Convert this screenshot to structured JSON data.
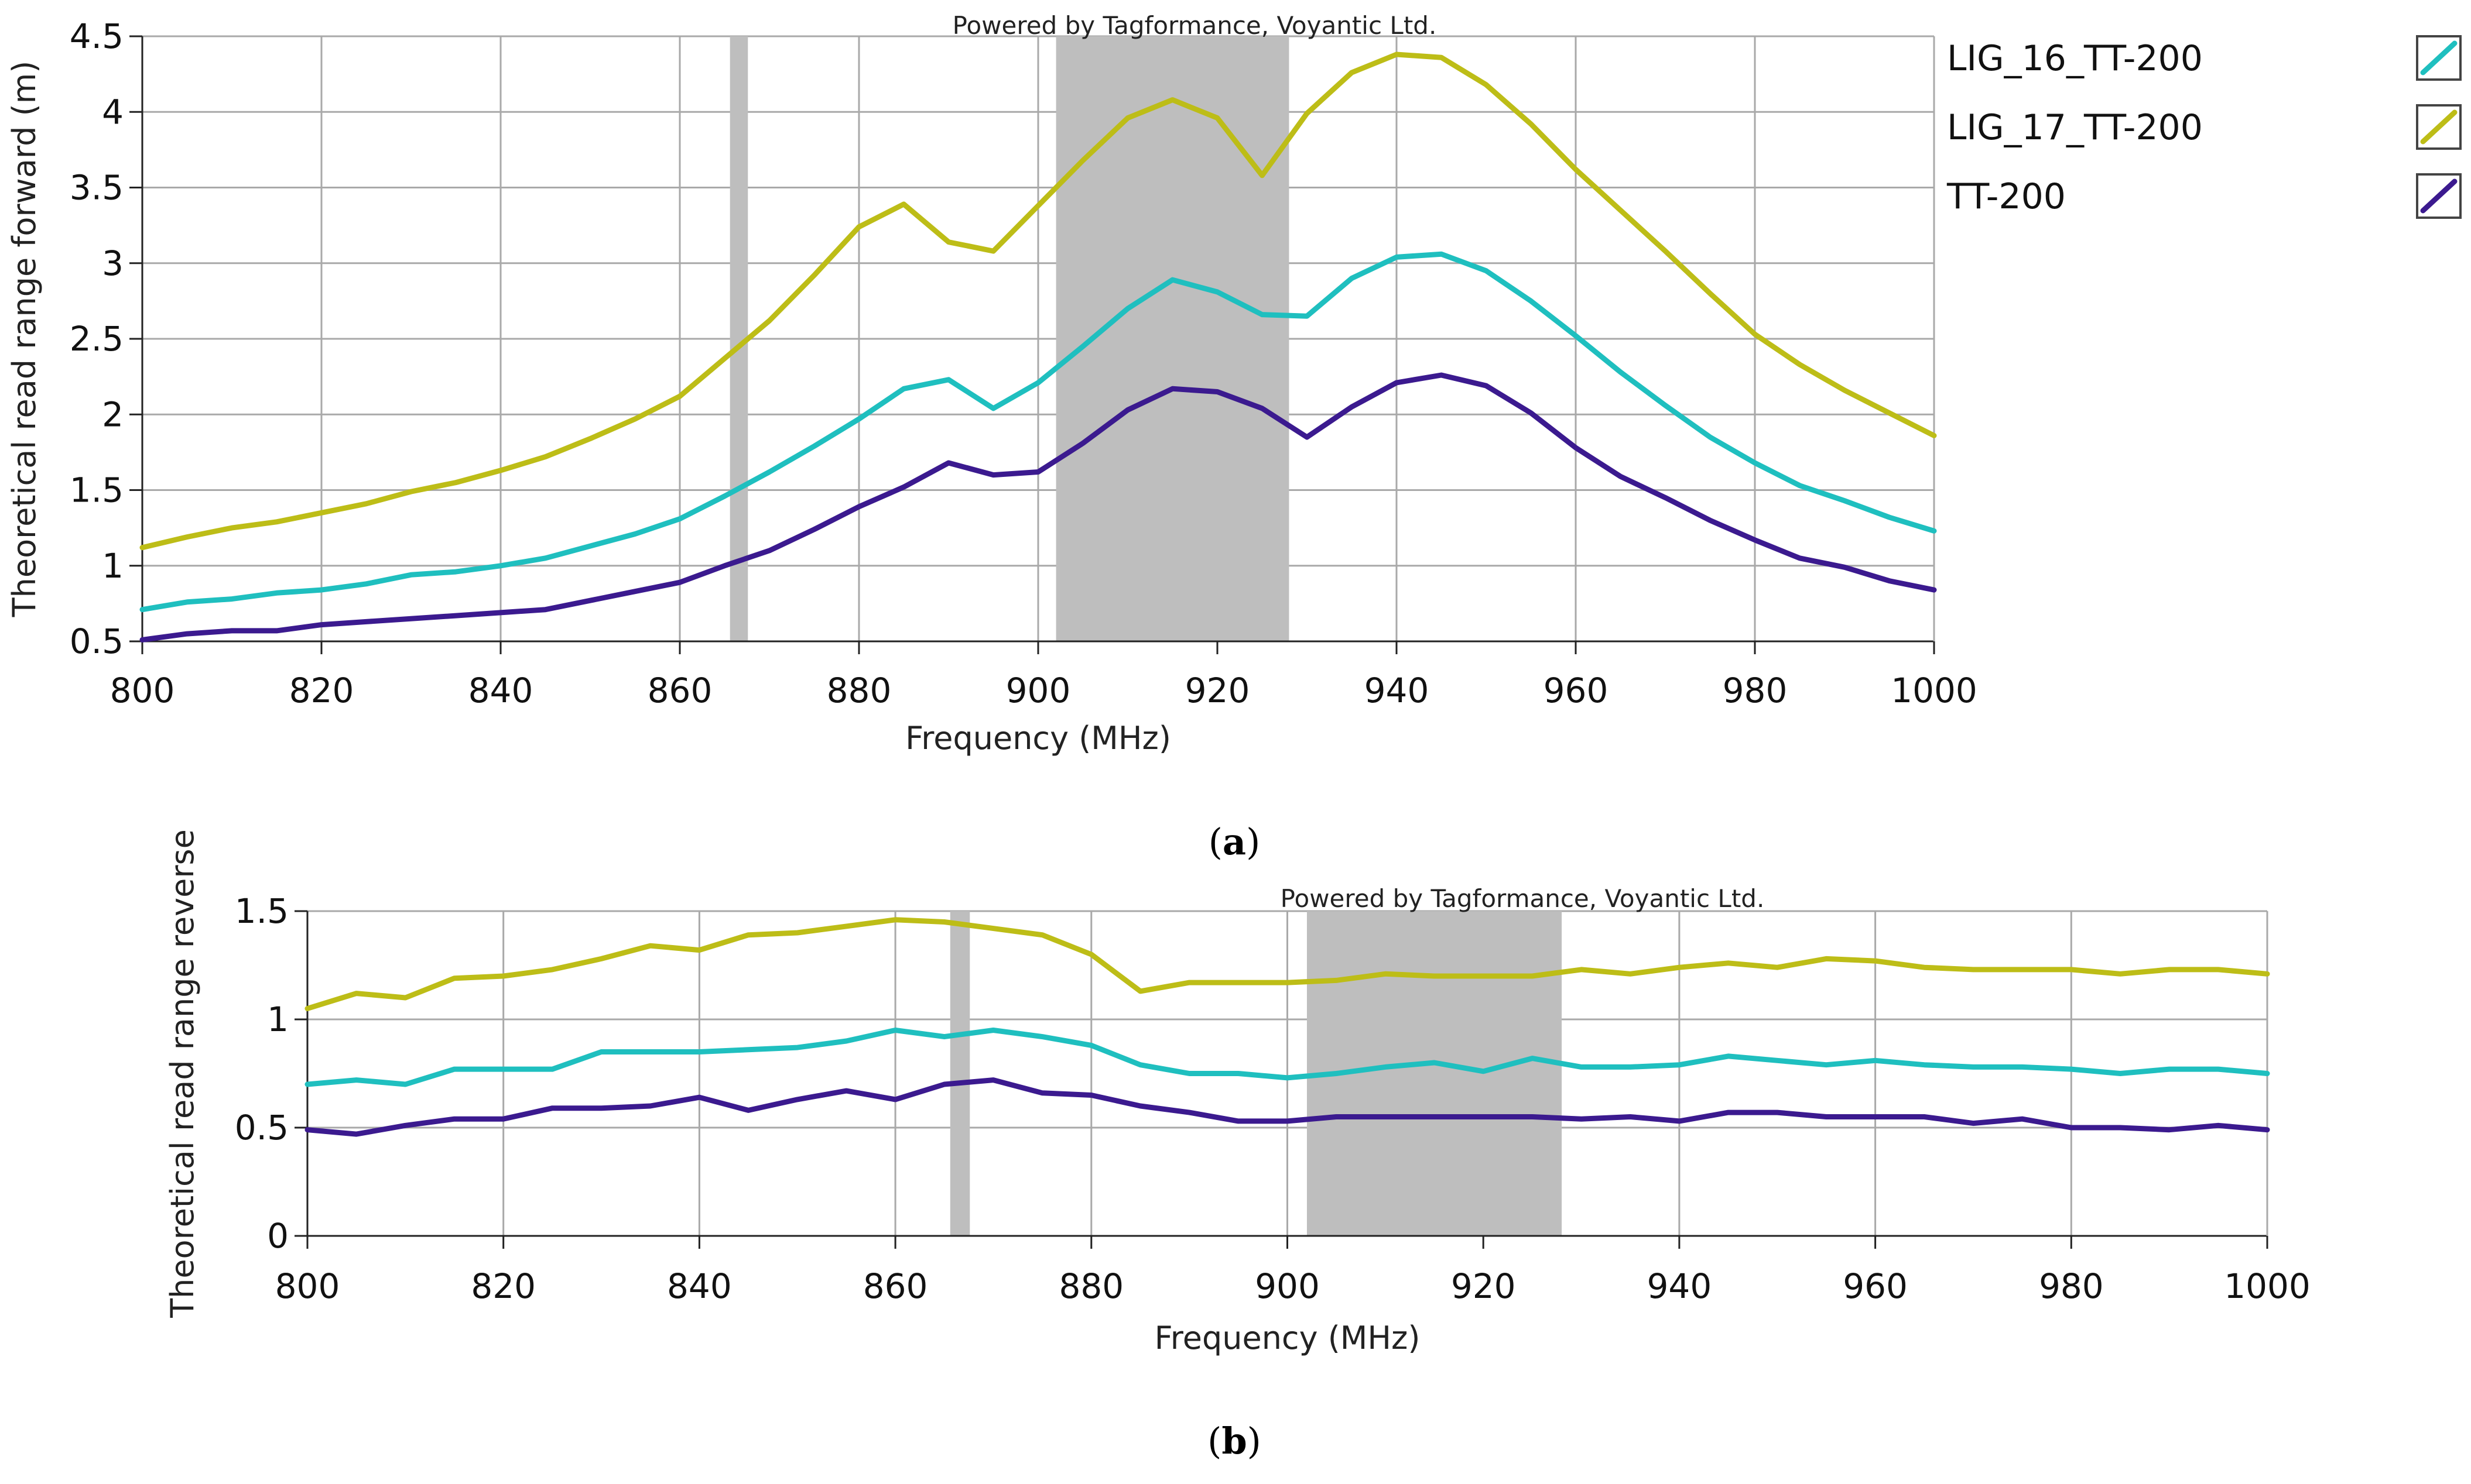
{
  "chart_data": [
    {
      "id": "a",
      "type": "line",
      "title": "",
      "watermark": "Powered by Tagformance, Voyantic Ltd.",
      "xlabel": "Frequency (MHz)",
      "ylabel": "Theoretical read range forward (m)",
      "xlim": [
        800,
        1000
      ],
      "ylim": [
        0.5,
        4.5
      ],
      "xticks": [
        800,
        820,
        840,
        860,
        880,
        900,
        920,
        940,
        960,
        980,
        1000
      ],
      "xtick_labels": [
        "800",
        "820",
        "840",
        "860",
        "880",
        "900",
        "920",
        "940",
        "960",
        "980",
        "1000"
      ],
      "yticks": [
        0.5,
        1,
        1.5,
        2,
        2.5,
        3,
        3.5,
        4,
        4.5
      ],
      "ytick_labels": [
        "0.5",
        "1",
        "1.5",
        "2",
        "2.5",
        "3",
        "3.5",
        "4",
        "4.5"
      ],
      "grid": true,
      "legend_position": "right",
      "caption_prefix": "(",
      "caption_label": "a",
      "caption_suffix": ")",
      "shaded_bands": [
        {
          "from": 865.6,
          "to": 867.6,
          "color": "#bebebe"
        },
        {
          "from": 902,
          "to": 928,
          "color": "#bebebe"
        }
      ],
      "x": [
        800,
        805,
        810,
        815,
        820,
        825,
        830,
        835,
        840,
        845,
        850,
        855,
        860,
        865,
        870,
        875,
        880,
        885,
        890,
        895,
        900,
        905,
        910,
        915,
        920,
        925,
        930,
        935,
        940,
        945,
        950,
        955,
        960,
        965,
        970,
        975,
        980,
        985,
        990,
        995,
        1000
      ],
      "series": [
        {
          "name": "LIG_16_TT-200",
          "color": "#1fbfbf",
          "values": [
            0.71,
            0.76,
            0.78,
            0.82,
            0.84,
            0.88,
            0.94,
            0.96,
            1.0,
            1.05,
            1.13,
            1.21,
            1.31,
            1.46,
            1.62,
            1.79,
            1.97,
            2.17,
            2.23,
            2.04,
            2.21,
            2.45,
            2.7,
            2.89,
            2.81,
            2.66,
            2.65,
            2.9,
            3.04,
            3.06,
            2.95,
            2.75,
            2.52,
            2.28,
            2.06,
            1.85,
            1.68,
            1.53,
            1.43,
            1.32,
            1.23
          ]
        },
        {
          "name": "LIG_17_TT-200",
          "color": "#bdbd17",
          "values": [
            1.12,
            1.19,
            1.25,
            1.29,
            1.35,
            1.41,
            1.49,
            1.55,
            1.63,
            1.72,
            1.84,
            1.97,
            2.12,
            2.37,
            2.62,
            2.92,
            3.24,
            3.39,
            3.14,
            3.08,
            3.38,
            3.68,
            3.96,
            4.08,
            3.96,
            3.58,
            3.99,
            4.26,
            4.38,
            4.36,
            4.18,
            3.92,
            3.62,
            3.35,
            3.08,
            2.8,
            2.53,
            2.33,
            2.16,
            2.01,
            1.86
          ]
        },
        {
          "name": "TT-200",
          "color": "#3b1a8f",
          "values": [
            0.51,
            0.55,
            0.57,
            0.57,
            0.61,
            0.63,
            0.65,
            0.67,
            0.69,
            0.71,
            0.77,
            0.83,
            0.89,
            1.0,
            1.1,
            1.24,
            1.39,
            1.52,
            1.68,
            1.6,
            1.62,
            1.81,
            2.03,
            2.17,
            2.15,
            2.04,
            1.85,
            2.05,
            2.21,
            2.26,
            2.19,
            2.01,
            1.78,
            1.59,
            1.45,
            1.3,
            1.17,
            1.05,
            0.99,
            0.9,
            0.84
          ]
        }
      ]
    },
    {
      "id": "b",
      "type": "line",
      "title": "",
      "watermark": "Powered by Tagformance, Voyantic Ltd.",
      "xlabel": "Frequency (MHz)",
      "ylabel": "Theoretical read range reverse",
      "xlim": [
        800,
        1000
      ],
      "ylim": [
        0,
        1.5
      ],
      "xticks": [
        800,
        820,
        840,
        860,
        880,
        900,
        920,
        940,
        960,
        980,
        1000
      ],
      "xtick_labels": [
        "800",
        "820",
        "840",
        "860",
        "880",
        "900",
        "920",
        "940",
        "960",
        "980",
        "1000"
      ],
      "yticks": [
        0,
        0.5,
        1,
        1.5
      ],
      "ytick_labels": [
        "0",
        "0.5",
        "1",
        "1.5"
      ],
      "grid": true,
      "legend_position": "none",
      "caption_prefix": "(",
      "caption_label": "b",
      "caption_suffix": ")",
      "shaded_bands": [
        {
          "from": 865.6,
          "to": 867.6,
          "color": "#bebebe"
        },
        {
          "from": 902,
          "to": 928,
          "color": "#bebebe"
        }
      ],
      "x": [
        800,
        805,
        810,
        815,
        820,
        825,
        830,
        835,
        840,
        845,
        850,
        855,
        860,
        865,
        870,
        875,
        880,
        885,
        890,
        895,
        900,
        905,
        910,
        915,
        920,
        925,
        930,
        935,
        940,
        945,
        950,
        955,
        960,
        965,
        970,
        975,
        980,
        985,
        990,
        995,
        1000
      ],
      "series": [
        {
          "name": "LIG_16_TT-200",
          "color": "#1fbfbf",
          "values": [
            0.7,
            0.72,
            0.7,
            0.77,
            0.77,
            0.77,
            0.85,
            0.85,
            0.85,
            0.86,
            0.87,
            0.9,
            0.95,
            0.92,
            0.95,
            0.92,
            0.88,
            0.79,
            0.75,
            0.75,
            0.73,
            0.75,
            0.78,
            0.8,
            0.76,
            0.82,
            0.78,
            0.78,
            0.79,
            0.83,
            0.81,
            0.79,
            0.81,
            0.79,
            0.78,
            0.78,
            0.77,
            0.75,
            0.77,
            0.77,
            0.75
          ]
        },
        {
          "name": "LIG_17_TT-200",
          "color": "#bdbd17",
          "values": [
            1.05,
            1.12,
            1.1,
            1.19,
            1.2,
            1.23,
            1.28,
            1.34,
            1.32,
            1.39,
            1.4,
            1.43,
            1.46,
            1.45,
            1.42,
            1.39,
            1.3,
            1.13,
            1.17,
            1.17,
            1.17,
            1.18,
            1.21,
            1.2,
            1.2,
            1.2,
            1.23,
            1.21,
            1.24,
            1.26,
            1.24,
            1.28,
            1.27,
            1.24,
            1.23,
            1.23,
            1.23,
            1.21,
            1.23,
            1.23,
            1.21
          ]
        },
        {
          "name": "TT-200",
          "color": "#3b1a8f",
          "values": [
            0.49,
            0.47,
            0.51,
            0.54,
            0.54,
            0.59,
            0.59,
            0.6,
            0.64,
            0.58,
            0.63,
            0.67,
            0.63,
            0.7,
            0.72,
            0.66,
            0.65,
            0.6,
            0.57,
            0.53,
            0.53,
            0.55,
            0.55,
            0.55,
            0.55,
            0.55,
            0.54,
            0.55,
            0.53,
            0.57,
            0.57,
            0.55,
            0.55,
            0.55,
            0.52,
            0.54,
            0.5,
            0.5,
            0.49,
            0.51,
            0.49
          ]
        }
      ]
    }
  ]
}
